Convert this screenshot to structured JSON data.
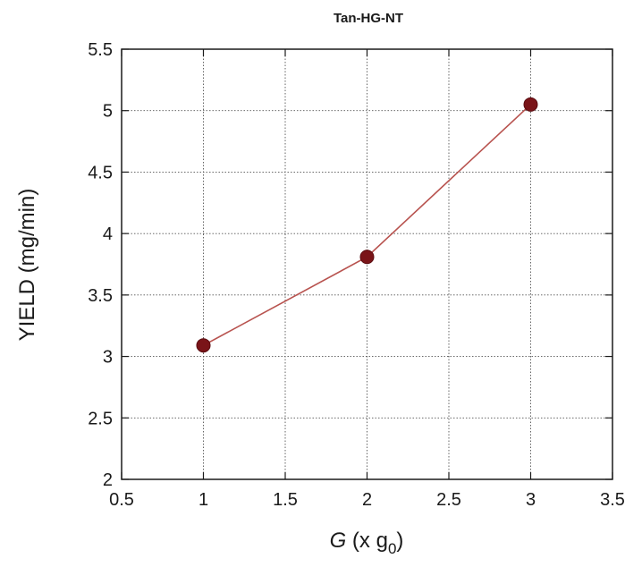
{
  "chart_data": {
    "type": "line",
    "title": "Tan-HG-NT",
    "xlabel": {
      "main": "G",
      "mid": " (x g",
      "sub": "0",
      "end": ")"
    },
    "ylabel": "YIELD (mg/min)",
    "xlim": [
      0.5,
      3.5
    ],
    "ylim": [
      2,
      5.5
    ],
    "xticks": [
      0.5,
      1,
      1.5,
      2,
      2.5,
      3,
      3.5
    ],
    "xtick_labels": [
      "0.5",
      "1",
      "1.5",
      "2",
      "2.5",
      "3",
      "3.5"
    ],
    "yticks": [
      2,
      2.5,
      3,
      3.5,
      4,
      4.5,
      5,
      5.5
    ],
    "ytick_labels": [
      "2",
      "2.5",
      "3",
      "3.5",
      "4",
      "4.5",
      "5",
      "5.5"
    ],
    "grid": true,
    "series": [
      {
        "x": [
          1,
          2,
          3
        ],
        "y": [
          3.09,
          3.81,
          5.05
        ],
        "color": "#7a1418",
        "line_color": "#b8534f",
        "marker": "circle"
      }
    ]
  }
}
